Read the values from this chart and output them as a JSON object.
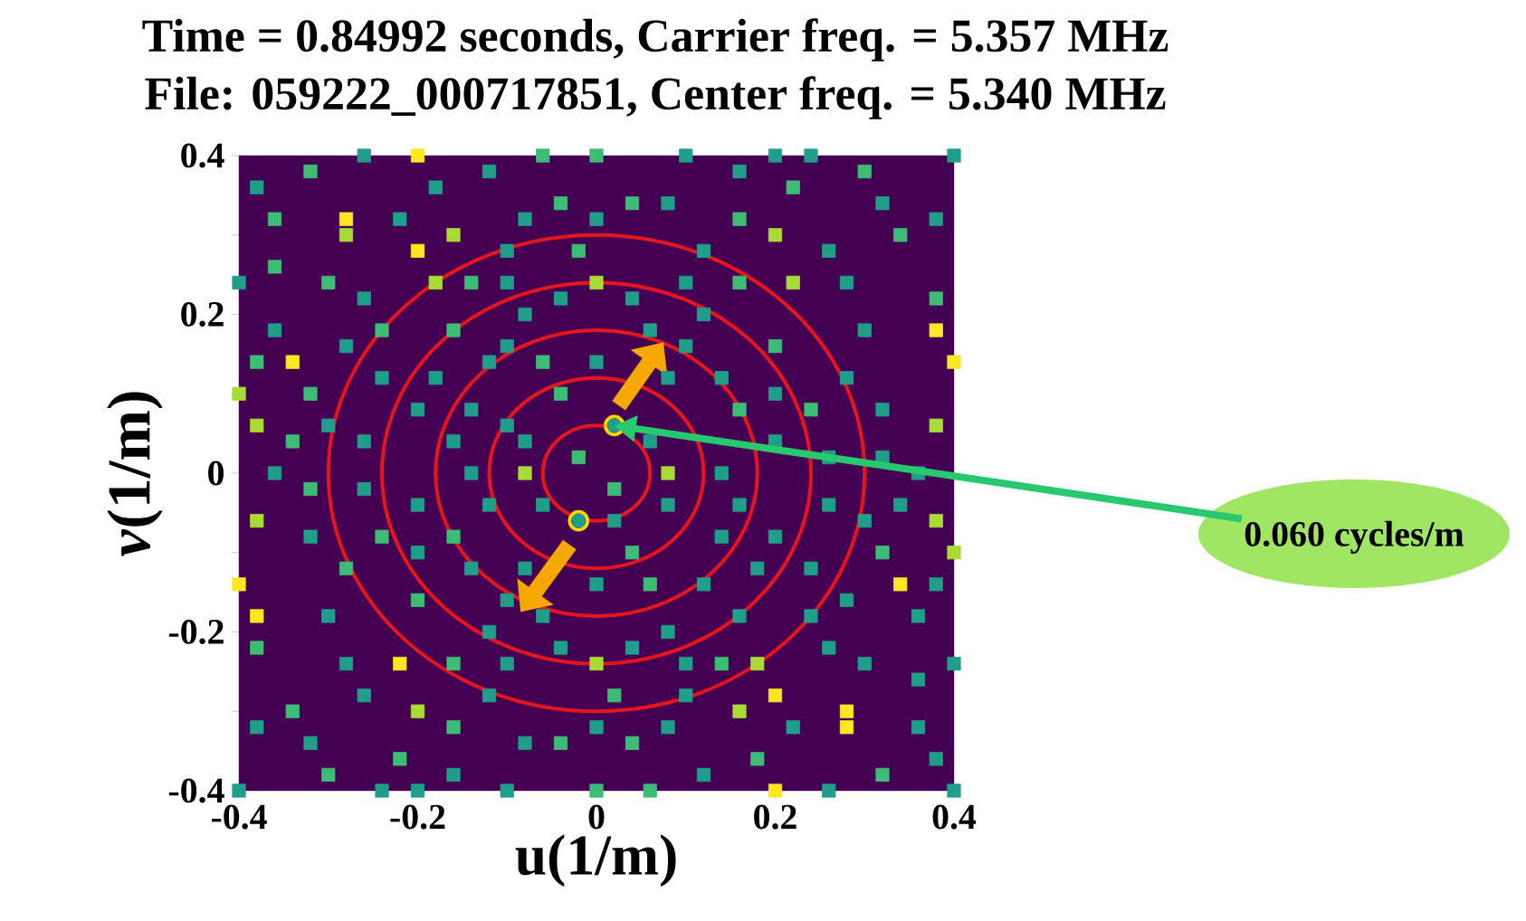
{
  "chart_data": {
    "type": "scatter",
    "title": "Time = 0.84992 seconds, Carrier freq. = 5.357 MHz",
    "subtitle": "File: 059222_000717851, Center freq. = 5.340 MHz",
    "xlabel": "u(1/m)",
    "ylabel": "*v*(1/m)",
    "marker": "square",
    "xlim": [
      -0.4,
      0.4
    ],
    "ylim": [
      -0.4,
      0.4
    ],
    "xticks": [
      -0.4,
      -0.2,
      0,
      0.2,
      0.4
    ],
    "yticks": [
      -0.4,
      {
        "value": -0.3,
        "label": null
      },
      -0.2,
      {
        "value": -0.1,
        "label": null
      },
      0,
      {
        "value": 0.1,
        "label": null
      },
      0.2,
      {
        "value": 0.3,
        "label": null
      },
      0.4
    ],
    "annotations": [
      "0.060 cycles/m"
    ],
    "series": [
      {
        "color": "#1f9e89",
        "x": [
          -0.26,
          -0.12,
          -0.38,
          -0.18,
          -0.22,
          -0.08,
          0.0,
          -0.1,
          -0.4,
          -0.1,
          -0.26,
          -0.04,
          -0.08,
          -0.36,
          -0.28,
          -0.1,
          -0.12,
          0.0,
          -0.24,
          -0.18,
          -0.2,
          -0.14,
          -0.3,
          -0.1,
          0.1,
          0.2,
          0.24,
          0.4,
          0.16,
          0.08,
          0.32,
          0.38,
          0.12,
          0.26,
          0.1,
          0.28,
          0.04,
          0.12,
          0.06,
          0.3,
          0.1,
          0.08,
          0.14,
          0.28,
          0.2,
          0.32,
          0.02,
          -0.26,
          -0.16,
          -0.08,
          -0.36,
          -0.14,
          -0.26,
          -0.2,
          -0.12,
          -0.06,
          -0.02,
          -0.32,
          -0.2,
          -0.14,
          -0.08,
          0.0,
          -0.1,
          -0.3,
          -0.06,
          -0.12,
          -0.04,
          -0.28,
          -0.1,
          -0.26,
          -0.12,
          -0.38,
          0.0,
          -0.32,
          -0.08,
          -0.16,
          -0.4,
          -0.24,
          -0.2,
          -0.1,
          0.06,
          0.2,
          0.26,
          0.32,
          0.36,
          0.14,
          0.08,
          0.16,
          0.26,
          0.34,
          0.02,
          0.3,
          0.14,
          0.2,
          0.18,
          0.24,
          0.12,
          0.38,
          0.28,
          0.16,
          0.24,
          0.36,
          0.08,
          0.04,
          0.26,
          0.1,
          0.3,
          0.4,
          0.1,
          0.36,
          0.08,
          0.22,
          0.36,
          0.38,
          0.12,
          0.26,
          0.4
        ],
        "values": [
          0.4,
          0.38,
          0.36,
          0.36,
          0.32,
          0.32,
          0.32,
          0.28,
          0.24,
          0.24,
          0.22,
          0.22,
          0.2,
          0.18,
          0.16,
          0.16,
          0.14,
          0.14,
          0.12,
          0.12,
          0.08,
          0.08,
          0.06,
          0.06,
          0.4,
          0.4,
          0.4,
          0.4,
          0.38,
          0.34,
          0.34,
          0.32,
          0.28,
          0.28,
          0.24,
          0.24,
          0.22,
          0.2,
          0.18,
          0.18,
          0.16,
          0.12,
          0.12,
          0.12,
          0.1,
          0.08,
          0.06,
          0.04,
          0.04,
          0.04,
          0.0,
          0.0,
          -0.02,
          -0.04,
          -0.04,
          -0.04,
          -0.06,
          -0.08,
          -0.1,
          -0.12,
          -0.12,
          -0.14,
          -0.16,
          -0.18,
          -0.18,
          -0.2,
          -0.22,
          -0.24,
          -0.24,
          -0.28,
          -0.28,
          -0.32,
          -0.32,
          -0.34,
          -0.34,
          -0.38,
          -0.4,
          -0.4,
          -0.4,
          -0.4,
          0.04,
          0.04,
          0.02,
          0.02,
          0.0,
          0.0,
          -0.04,
          -0.04,
          -0.04,
          -0.04,
          -0.06,
          -0.06,
          -0.08,
          -0.08,
          -0.12,
          -0.12,
          -0.14,
          -0.14,
          -0.16,
          -0.18,
          -0.18,
          -0.18,
          -0.2,
          -0.22,
          -0.22,
          -0.24,
          -0.24,
          -0.24,
          -0.28,
          -0.26,
          -0.32,
          -0.32,
          -0.32,
          -0.36,
          -0.38,
          -0.4,
          -0.4
        ]
      },
      {
        "color": "#3cbc74",
        "x": [
          -0.06,
          0.0,
          -0.32,
          -0.04,
          -0.36,
          -0.02,
          -0.36,
          -0.3,
          -0.14,
          -0.24,
          -0.16,
          -0.38,
          -0.06,
          -0.32,
          -0.04,
          0.3,
          0.22,
          0.04,
          0.16,
          0.34,
          0.16,
          0.38,
          0.2,
          0.16,
          0.24,
          -0.34,
          -0.02,
          -0.32,
          -0.24,
          -0.16,
          -0.28,
          -0.2,
          -0.38,
          -0.16,
          -0.34,
          -0.16,
          -0.04,
          -0.22,
          -0.3,
          0.0,
          0.02,
          0.04,
          0.32,
          0.06,
          0.14,
          0.02,
          0.04,
          0.18,
          0.32,
          0.06
        ],
        "values": [
          0.4,
          0.4,
          0.38,
          0.34,
          0.32,
          0.28,
          0.26,
          0.24,
          0.24,
          0.18,
          0.18,
          0.14,
          0.14,
          0.1,
          0.1,
          0.38,
          0.36,
          0.34,
          0.32,
          0.3,
          0.24,
          0.22,
          0.16,
          0.08,
          0.08,
          0.04,
          0.02,
          -0.02,
          -0.08,
          -0.08,
          -0.12,
          -0.16,
          -0.22,
          -0.24,
          -0.3,
          -0.32,
          -0.34,
          -0.36,
          -0.38,
          -0.4,
          -0.02,
          -0.1,
          -0.1,
          -0.14,
          -0.24,
          -0.28,
          -0.34,
          -0.36,
          -0.38,
          -0.4
        ]
      },
      {
        "color": "#a8db34",
        "x": [
          -0.28,
          -0.16,
          -0.18,
          0.0,
          -0.4,
          -0.38,
          0.2,
          0.22,
          0.38,
          -0.08,
          -0.38,
          0.0,
          -0.2,
          0.08,
          0.38,
          0.4,
          0.18,
          0.16
        ],
        "values": [
          0.3,
          0.3,
          0.24,
          0.24,
          0.1,
          0.06,
          0.3,
          0.24,
          0.06,
          0.0,
          -0.06,
          -0.24,
          -0.3,
          0.0,
          -0.06,
          -0.1,
          -0.24,
          -0.3
        ]
      },
      {
        "color": "#fde725",
        "x": [
          -0.2,
          -0.28,
          -0.2,
          -0.34,
          0.38,
          0.4,
          -0.4,
          -0.38,
          -0.22,
          0.34,
          0.2,
          0.28,
          0.28,
          0.2
        ],
        "values": [
          0.4,
          0.32,
          0.28,
          0.14,
          0.18,
          0.14,
          -0.14,
          -0.18,
          -0.24,
          -0.14,
          -0.28,
          -0.3,
          -0.32,
          -0.4
        ]
      },
      {
        "marker": "circle",
        "color": "#ffd700",
        "x": [
          0.02,
          -0.02
        ],
        "values": [
          0.06,
          -0.06
        ]
      }
    ]
  }
}
